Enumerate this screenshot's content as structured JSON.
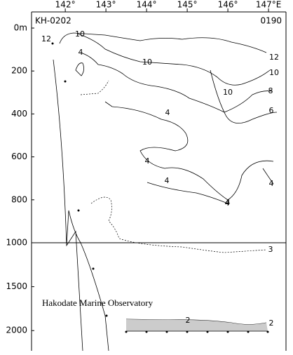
{
  "chart_data": {
    "type": "contour",
    "cruise": "KH-0202",
    "station": "0190",
    "credit": "Hakodate Marine Observatory",
    "xlim": [
      141.17,
      147.43
    ],
    "xticks": [
      {
        "value": 142,
        "label": "142°"
      },
      {
        "value": 143,
        "label": "143°"
      },
      {
        "value": 144,
        "label": "144°"
      },
      {
        "value": 145,
        "label": "145°"
      },
      {
        "value": 146,
        "label": "146°"
      },
      {
        "value": 147,
        "label": "147°E"
      }
    ],
    "ylim": [
      0,
      2230
    ],
    "yscale_break": 1000,
    "yticks": [
      {
        "value": 0,
        "label": "0m"
      },
      200,
      400,
      600,
      800,
      1000,
      1500,
      2000
    ],
    "contour_labels": [
      12,
      10,
      4,
      10,
      12,
      10,
      8,
      10,
      6,
      4,
      4,
      4,
      4,
      4,
      4,
      3,
      2,
      2
    ]
  }
}
